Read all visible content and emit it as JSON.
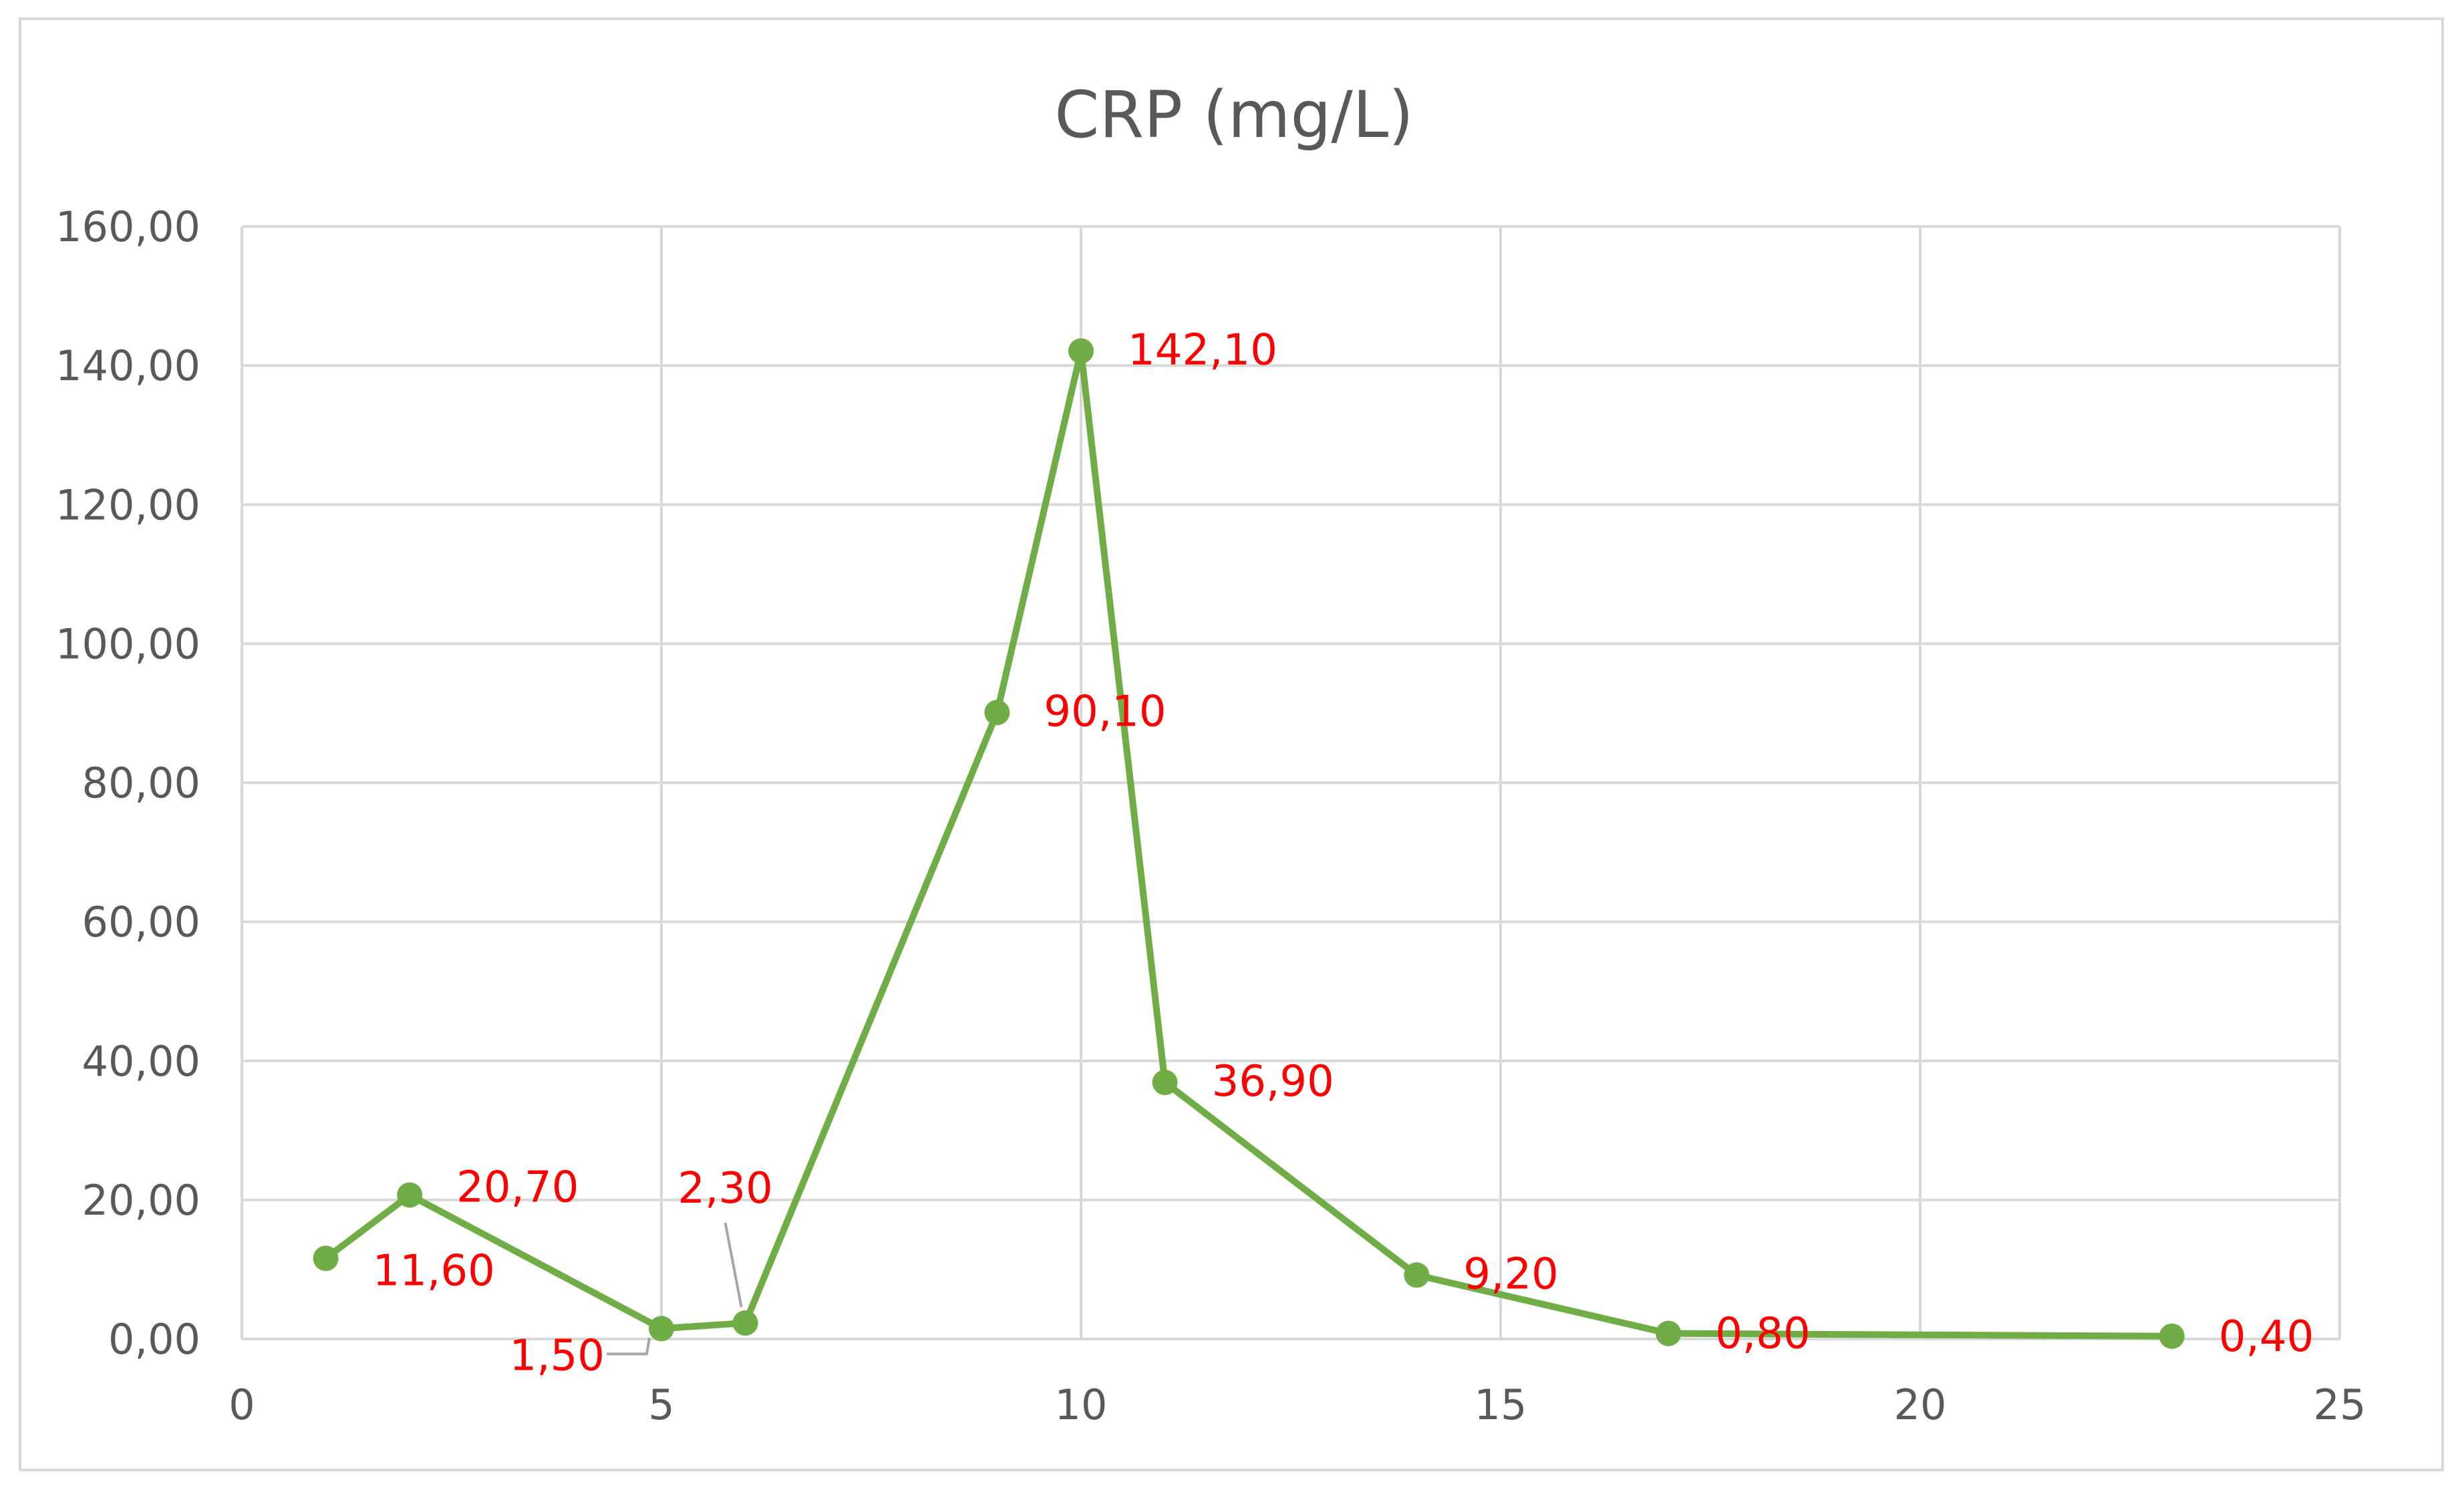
{
  "chart_data": {
    "type": "scatter",
    "title": "CRP (mg/L)",
    "xlabel": "",
    "ylabel": "",
    "xlim": [
      0,
      25
    ],
    "ylim": [
      0,
      160
    ],
    "x_ticks": [
      0,
      5,
      10,
      15,
      20,
      25
    ],
    "y_ticks": [
      0,
      20,
      40,
      60,
      80,
      100,
      120,
      140,
      160
    ],
    "x_tick_labels": [
      "0",
      "5",
      "10",
      "15",
      "20",
      "25"
    ],
    "y_tick_labels": [
      "0,00",
      "20,00",
      "40,00",
      "60,00",
      "80,00",
      "100,00",
      "120,00",
      "140,00",
      "160,00"
    ],
    "grid": true,
    "legend": "none",
    "series": [
      {
        "x": [
          1,
          2,
          5,
          6,
          9,
          10,
          11,
          14,
          17,
          23
        ],
        "y": [
          11.6,
          20.7,
          1.5,
          2.3,
          90.1,
          142.1,
          36.9,
          9.2,
          0.8,
          0.4
        ],
        "labels": [
          "11,60",
          "20,70",
          "1,50",
          "2,30",
          "90,10",
          "142,10",
          "36,90",
          "9,20",
          "0,80",
          "0,40"
        ],
        "color": "#70ad47",
        "label_color": "#ff0000"
      }
    ]
  }
}
